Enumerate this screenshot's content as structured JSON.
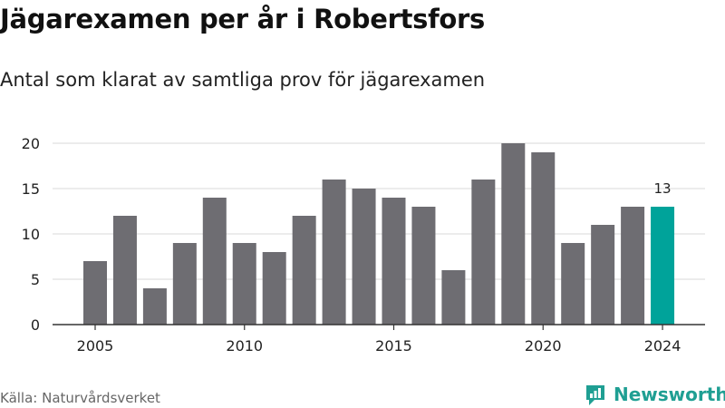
{
  "header": {
    "title": "Jägarexamen per år i Robertsfors",
    "subtitle": "Antal som klarat av samtliga prov för jägarexamen"
  },
  "footer": {
    "source": "Källa: Naturvårdsverket",
    "brand": "Newsworthy",
    "brand_icon": "newsworthy-logo-icon"
  },
  "colors": {
    "bar": "#6e6d72",
    "highlight": "#00a39a",
    "grid": "#d9d9d9",
    "axis": "#333333",
    "brand": "#1f9f93"
  },
  "chart_data": {
    "type": "bar",
    "title": "Jägarexamen per år i Robertsfors",
    "subtitle": "Antal som klarat av samtliga prov för jägarexamen",
    "xlabel": "",
    "ylabel": "",
    "x": [
      2005,
      2006,
      2007,
      2008,
      2009,
      2010,
      2011,
      2012,
      2013,
      2014,
      2015,
      2016,
      2017,
      2018,
      2019,
      2020,
      2021,
      2022,
      2023,
      2024
    ],
    "values": [
      7,
      12,
      4,
      9,
      14,
      9,
      8,
      12,
      16,
      15,
      14,
      13,
      6,
      16,
      20,
      19,
      9,
      11,
      13,
      13
    ],
    "ylim": [
      0,
      20
    ],
    "y_ticks": [
      0,
      5,
      10,
      15,
      20
    ],
    "x_tick_labels": [
      "2005",
      "2010",
      "2015",
      "2020",
      "2024"
    ],
    "highlight": {
      "x": 2024,
      "label": "13"
    },
    "grid": true,
    "legend": "none"
  }
}
